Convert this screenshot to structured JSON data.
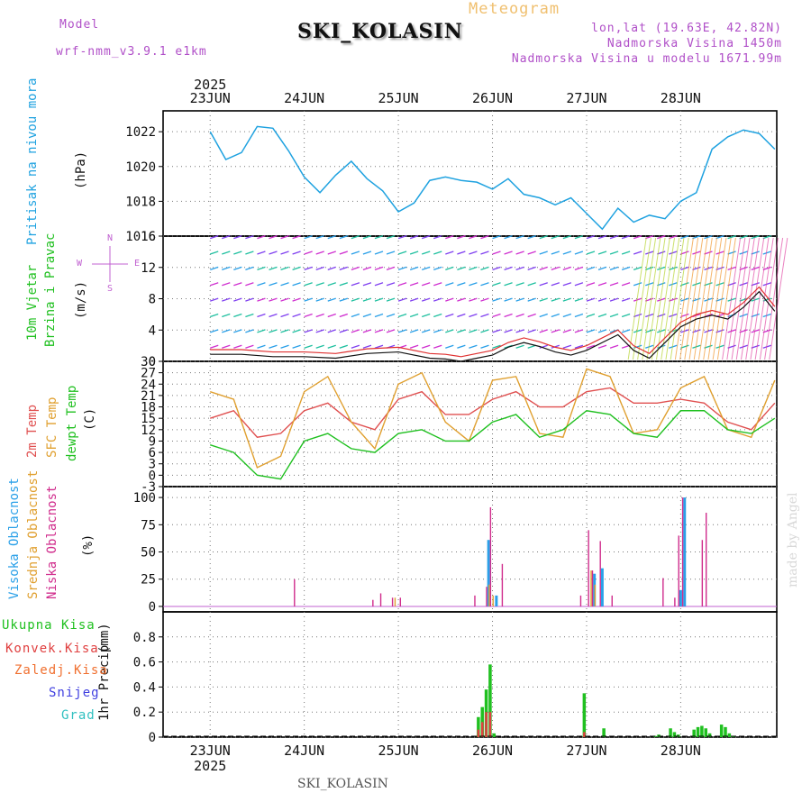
{
  "header": {
    "model_label": "Model",
    "model_name": "wrf-nmm_v3.9.1 e1km",
    "station": "SKI_KOLASIN",
    "chart_kind": "Meteogram",
    "coords": "lon,lat (19.63E, 42.82N)",
    "elevation": "Nadmorska Visina 1450m",
    "model_elevation": "Nadmorska Visina u modelu 1671.99m"
  },
  "footer": {
    "station": "SKI_KOLASIN",
    "credit": "made by Angel"
  },
  "colors": {
    "pressure": "#1fa2e0",
    "temp2m": "#e05050",
    "sfc": "#e0a030",
    "dew": "#20c020",
    "high_cloud": "#2aa0e8",
    "mid_cloud": "#e0a030",
    "low_cloud": "#d02c8c",
    "total_precip": "#20c020",
    "conv_precip": "#e04040",
    "snow": "#4040e0"
  },
  "chart_data": [
    {
      "type": "line",
      "panel": "pressure",
      "ylabel": "Pritisak na nivou mora",
      "unit": "(hPa)",
      "ylim": [
        1016,
        1023.2
      ],
      "yticks": [
        1016,
        1018,
        1020,
        1022
      ],
      "x": [
        0,
        4,
        8,
        12,
        16,
        20,
        24,
        28,
        32,
        36,
        40,
        44,
        48,
        52,
        56,
        60,
        64,
        68,
        72,
        76,
        80,
        84,
        88,
        92,
        96,
        100,
        104,
        108,
        112,
        116,
        120,
        124,
        128,
        132,
        136,
        140,
        144
      ],
      "values": [
        1022.0,
        1020.4,
        1020.8,
        1022.3,
        1022.2,
        1020.9,
        1019.4,
        1018.5,
        1019.5,
        1020.3,
        1019.3,
        1018.6,
        1017.4,
        1017.9,
        1019.2,
        1019.4,
        1019.2,
        1019.1,
        1018.7,
        1019.3,
        1018.4,
        1018.2,
        1017.8,
        1018.2,
        1017.3,
        1016.4,
        1017.6,
        1016.8,
        1017.2,
        1017.0,
        1018.0,
        1018.5,
        1021.0,
        1021.7,
        1022.1,
        1021.9,
        1021.0
      ]
    },
    {
      "type": "line",
      "panel": "wind",
      "ylabel": "10m Vjetar Brzina i Pravac",
      "unit": "(m/s)",
      "ylim": [
        0,
        16
      ],
      "yticks": [
        0,
        4,
        8,
        12,
        16
      ],
      "compass": [
        "N",
        "E",
        "S",
        "W"
      ],
      "x": [
        0,
        8,
        16,
        24,
        32,
        40,
        48,
        56,
        60,
        64,
        68,
        72,
        76,
        80,
        84,
        88,
        92,
        96,
        100,
        104,
        108,
        112,
        116,
        120,
        124,
        128,
        132,
        136,
        140,
        144
      ],
      "values": [
        1.5,
        1.5,
        1.2,
        1.2,
        1.0,
        1.6,
        1.8,
        1.0,
        0.9,
        0.6,
        1.0,
        1.4,
        2.4,
        3.0,
        2.5,
        1.8,
        1.4,
        2.0,
        3.0,
        4.0,
        2.0,
        1.0,
        3.0,
        5.0,
        6.0,
        6.5,
        6.0,
        7.5,
        9.5,
        7.0
      ],
      "speed_barb_rows": [
        2,
        4,
        6,
        8,
        10,
        12,
        14,
        16
      ]
    },
    {
      "type": "line",
      "panel": "temperature",
      "ylabel_parts": [
        "2m Temp",
        "SFC Temp",
        "dewpt Temp"
      ],
      "unit": "(C)",
      "ylim": [
        -3,
        30
      ],
      "yticks": [
        -3,
        0,
        3,
        6,
        9,
        12,
        15,
        18,
        21,
        24,
        27,
        30
      ],
      "x": [
        0,
        6,
        12,
        18,
        24,
        30,
        36,
        42,
        48,
        54,
        60,
        66,
        72,
        78,
        84,
        90,
        96,
        102,
        108,
        114,
        120,
        126,
        132,
        138,
        144
      ],
      "series": [
        {
          "name": "2m Temp",
          "values": [
            15,
            17,
            10,
            11,
            17,
            19,
            14,
            12,
            20,
            22,
            16,
            16,
            20,
            22,
            18,
            18,
            22,
            23,
            19,
            19,
            20,
            19,
            14,
            12,
            19
          ]
        },
        {
          "name": "SFC Temp",
          "values": [
            22,
            20,
            2,
            5,
            22,
            26,
            14,
            7,
            24,
            27,
            14,
            9,
            25,
            26,
            11,
            10,
            28,
            26,
            11,
            12,
            23,
            26,
            12,
            10,
            25
          ]
        },
        {
          "name": "dewpt Temp",
          "values": [
            8,
            6,
            0,
            -1,
            9,
            11,
            7,
            6,
            11,
            12,
            9,
            9,
            14,
            16,
            10,
            12,
            17,
            16,
            11,
            10,
            17,
            17,
            12,
            11,
            15
          ]
        }
      ]
    },
    {
      "type": "bar",
      "panel": "clouds",
      "ylabel_parts": [
        "Visoka Oblacnost",
        "Srednja Oblacnost",
        "Niska Oblacnost"
      ],
      "unit": "(%)",
      "ylim": [
        -5,
        110
      ],
      "yticks": [
        0,
        25,
        50,
        75,
        100
      ],
      "series": [
        {
          "name": "Visoka Oblacnost",
          "x": [
            71,
            73,
            98,
            100,
            120,
            121
          ],
          "values": [
            61,
            10,
            30,
            35,
            15,
            100
          ]
        },
        {
          "name": "Srednja Oblacnost",
          "x": [
            47,
            71,
            72,
            97,
            98
          ],
          "values": [
            8,
            20,
            10,
            33,
            20
          ]
        },
        {
          "name": "Niska Oblacnost",
          "x": [
            21,
            41,
            43,
            46,
            48,
            67,
            70,
            71,
            74,
            94,
            96,
            97,
            99,
            102,
            115,
            118,
            119,
            120,
            125,
            126
          ],
          "values": [
            25,
            6,
            12,
            8,
            8,
            10,
            18,
            91,
            39,
            10,
            70,
            33,
            60,
            10,
            26,
            8,
            65,
            100,
            61,
            86
          ]
        }
      ]
    },
    {
      "type": "bar",
      "panel": "precipitation",
      "ylabel": "1hr Precip",
      "unit": "(mm)",
      "ylim": [
        0,
        1.0
      ],
      "yticks": [
        0,
        0.2,
        0.4,
        0.6,
        0.8
      ],
      "legend": [
        "Ukupna Kisa",
        "Konvek.Kisa",
        "Zaledj.Kisa",
        "Snijeg",
        "Grad"
      ],
      "series": [
        {
          "name": "Ukupna Kisa",
          "x": [
            68,
            69,
            70,
            71,
            72,
            95,
            100,
            113,
            114,
            117,
            118,
            119,
            123,
            124,
            125,
            126,
            127,
            130,
            131,
            132,
            133
          ],
          "values": [
            0.16,
            0.24,
            0.38,
            0.58,
            0.03,
            0.35,
            0.07,
            0.01,
            0.02,
            0.07,
            0.04,
            0.02,
            0.06,
            0.08,
            0.09,
            0.07,
            0.03,
            0.1,
            0.08,
            0.03,
            0.01
          ]
        },
        {
          "name": "Konvek.Kisa",
          "x": [
            68,
            69,
            70,
            71,
            95
          ],
          "values": [
            0.06,
            0.12,
            0.2,
            0.2,
            0.04
          ]
        }
      ]
    }
  ],
  "x_axis": {
    "tick_labels": [
      "23JUN",
      "24JUN",
      "25JUN",
      "26JUN",
      "27JUN",
      "28JUN"
    ],
    "year": "2025"
  },
  "labels": {
    "precip_legend": [
      "Ukupna Kisa",
      "Konvek.Kisa",
      "Zaledj.Kisa",
      "Snijeg",
      "Grad"
    ]
  }
}
